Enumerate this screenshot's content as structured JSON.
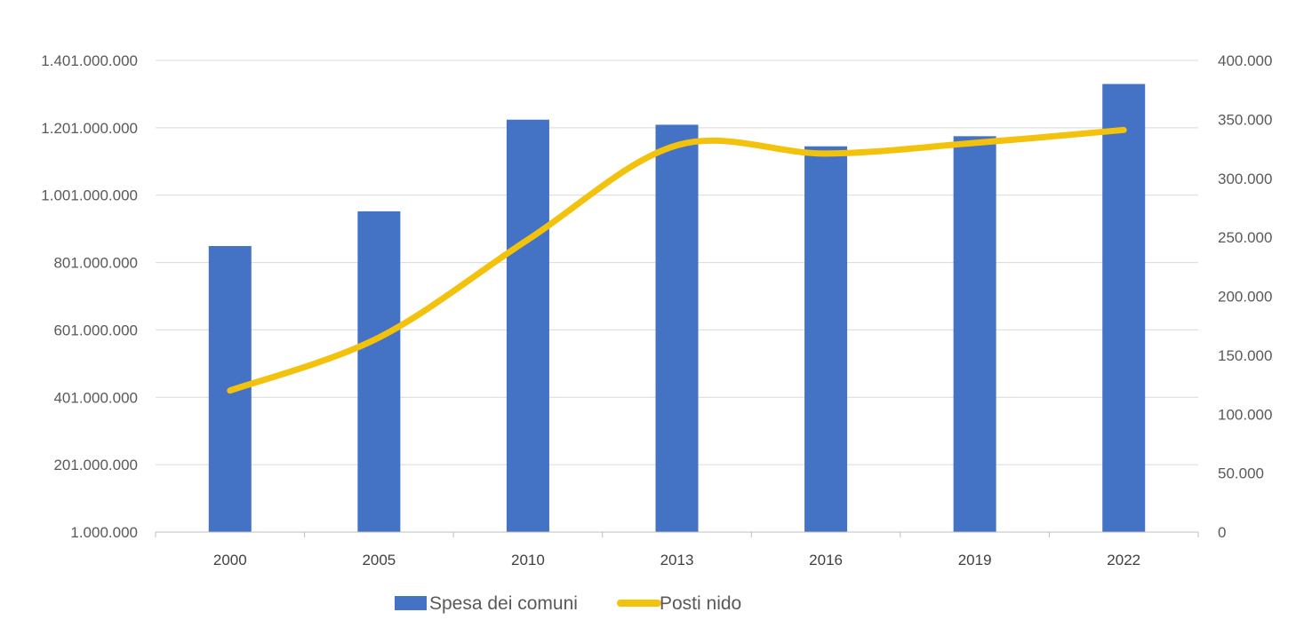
{
  "chart_data": {
    "type": "bar",
    "categories": [
      "2000",
      "2005",
      "2010",
      "2013",
      "2016",
      "2019",
      "2022"
    ],
    "series": [
      {
        "name": "Spesa dei comuni",
        "type": "bar",
        "axis": "left",
        "color": "#4472C4",
        "values": [
          850000000,
          953000000,
          1225000000,
          1210000000,
          1146000000,
          1176000000,
          1331000000
        ]
      },
      {
        "name": "Posti nido",
        "type": "line",
        "axis": "right",
        "color": "#F2C20D",
        "values": [
          120000,
          165000,
          248000,
          328000,
          321000,
          330000,
          341000
        ]
      }
    ],
    "ylim_left": [
      1000000,
      1401000000
    ],
    "yticks_left": [
      "1.000.000",
      "201.000.000",
      "401.000.000",
      "601.000.000",
      "801.000.000",
      "1.001.000.000",
      "1.201.000.000",
      "1.401.000.000"
    ],
    "ylim_right": [
      0,
      400000
    ],
    "yticks_right": [
      "0",
      "50.000",
      "100.000",
      "150.000",
      "200.000",
      "250.000",
      "300.000",
      "350.000",
      "400.000"
    ],
    "grid": true,
    "legend_position": "bottom"
  }
}
